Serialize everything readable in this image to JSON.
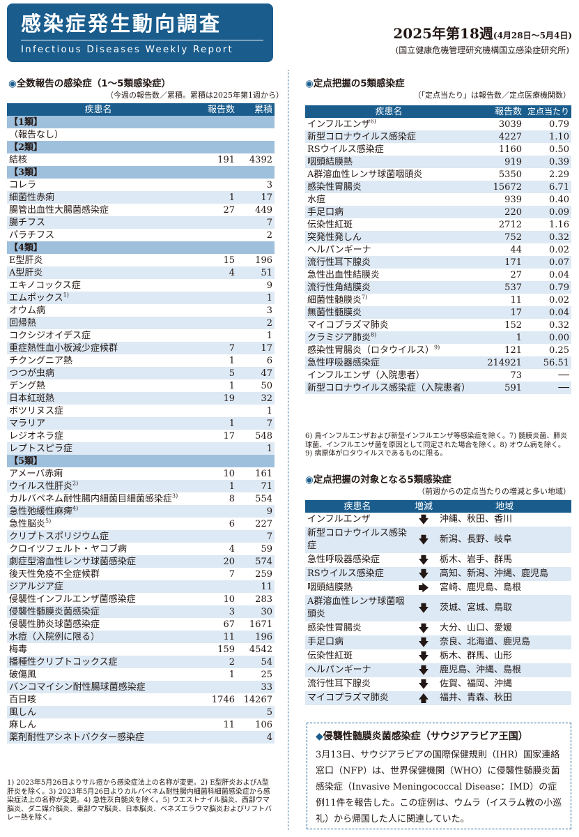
{
  "header": {
    "title_jp": "感染症発生動向調査",
    "title_en": "Infectious Diseases Weekly Report",
    "issue_main": "2025年第18週",
    "issue_dates": "(4月28日～5月4日)",
    "org": "(国立健康危機管理研究機構国立感染症研究所)",
    "brand_color": "#1a5d8d"
  },
  "left": {
    "title": "全数報告の感染症（1～5類感染症）",
    "note": "（今週の報告数／累積。累積は2025年第1週から）",
    "headers": [
      "疾患名",
      "報告数",
      "累積"
    ],
    "rows": [
      {
        "cat": "【1類】"
      },
      {
        "name": "（報告なし）",
        "count": "",
        "total": ""
      },
      {
        "cat": "【2類】"
      },
      {
        "name": "結核",
        "count": "191",
        "total": "4392"
      },
      {
        "cat": "【3類】"
      },
      {
        "name": "コレラ",
        "count": "",
        "total": "3"
      },
      {
        "name": "細菌性赤痢",
        "count": "1",
        "total": "17"
      },
      {
        "name": "腸管出血性大腸菌感染症",
        "count": "27",
        "total": "449"
      },
      {
        "name": "腸チフス",
        "count": "",
        "total": "7"
      },
      {
        "name": "パラチフス",
        "count": "",
        "total": "2"
      },
      {
        "cat": "【4類】"
      },
      {
        "name": "E型肝炎",
        "count": "15",
        "total": "196"
      },
      {
        "name": "A型肝炎",
        "count": "4",
        "total": "51"
      },
      {
        "name": "エキノコックス症",
        "count": "",
        "total": "9"
      },
      {
        "name": "エムポックス",
        "sup": "1)",
        "count": "",
        "total": "1"
      },
      {
        "name": "オウム病",
        "count": "",
        "total": "3"
      },
      {
        "name": "回帰熱",
        "count": "",
        "total": "2"
      },
      {
        "name": "コクシジオイデス症",
        "count": "",
        "total": "1"
      },
      {
        "name": "重症熱性血小板減少症候群",
        "count": "7",
        "total": "17"
      },
      {
        "name": "チクングニア熱",
        "count": "1",
        "total": "6"
      },
      {
        "name": "つつが虫病",
        "count": "5",
        "total": "47"
      },
      {
        "name": "デング熱",
        "count": "1",
        "total": "50"
      },
      {
        "name": "日本紅斑熱",
        "count": "19",
        "total": "32"
      },
      {
        "name": "ボツリヌス症",
        "count": "",
        "total": "1"
      },
      {
        "name": "マラリア",
        "count": "1",
        "total": "7"
      },
      {
        "name": "レジオネラ症",
        "count": "17",
        "total": "548"
      },
      {
        "name": "レプトスピラ症",
        "count": "",
        "total": "1"
      },
      {
        "cat": "【5類】"
      },
      {
        "name": "アメーバ赤痢",
        "count": "10",
        "total": "161"
      },
      {
        "name": "ウイルス性肝炎",
        "sup": "2)",
        "count": "1",
        "total": "71"
      },
      {
        "name": "カルバペネム耐性腸内細菌目細菌感染症",
        "sup": "3)",
        "count": "8",
        "total": "554"
      },
      {
        "name": "急性弛緩性麻痺",
        "sup": "4)",
        "count": "",
        "total": "9"
      },
      {
        "name": "急性脳炎",
        "sup": "5)",
        "count": "6",
        "total": "227"
      },
      {
        "name": "クリプトスポリジウム症",
        "count": "",
        "total": "7"
      },
      {
        "name": "クロイツフェルト・ヤコブ病",
        "count": "4",
        "total": "59"
      },
      {
        "name": "劇症型溶血性レンサ球菌感染症",
        "count": "20",
        "total": "574"
      },
      {
        "name": "後天性免疫不全症候群",
        "count": "7",
        "total": "259"
      },
      {
        "name": "ジアルジア症",
        "count": "",
        "total": "11"
      },
      {
        "name": "侵襲性インフルエンザ菌感染症",
        "count": "10",
        "total": "283"
      },
      {
        "name": "侵襲性髄膜炎菌感染症",
        "count": "3",
        "total": "30"
      },
      {
        "name": "侵襲性肺炎球菌感染症",
        "count": "67",
        "total": "1671"
      },
      {
        "name": "水痘（入院例に限る）",
        "count": "11",
        "total": "196"
      },
      {
        "name": "梅毒",
        "count": "159",
        "total": "4542"
      },
      {
        "name": "播種性クリプトコックス症",
        "count": "2",
        "total": "54"
      },
      {
        "name": "破傷風",
        "count": "1",
        "total": "25"
      },
      {
        "name": "バンコマイシン耐性腸球菌感染症",
        "count": "",
        "total": "33"
      },
      {
        "name": "百日咳",
        "count": "1746",
        "total": "14267"
      },
      {
        "name": "風しん",
        "count": "",
        "total": "5"
      },
      {
        "name": "麻しん",
        "count": "11",
        "total": "106"
      },
      {
        "name": "薬剤耐性アシネトバクター感染症",
        "count": "",
        "total": "4"
      }
    ],
    "footnote": "1) 2023年5月26日よりサル痘から感染症法上の名称が変更。2) E型肝炎およびA型肝炎を除く。3) 2023年5月26日よりカルバペネム耐性腸内細菌科細菌感染症から感染症法上の名称が変更。4) 急性灰白髄炎を除く。5) ウエストナイル脳炎、西部ウマ脳炎、ダニ媒介脳炎、東部ウマ脳炎、日本脳炎、ベネズエラウマ脳炎およびリフトバレー熱を除く。"
  },
  "sentinel": {
    "title": "定点把握の5類感染症",
    "note": "（「定点当たり」は報告数／定点医療機関数）",
    "headers": [
      "疾患名",
      "報告数",
      "定点当たり"
    ],
    "rows": [
      {
        "name": "インフルエンザ",
        "sup": "6)",
        "count": "3039",
        "per": "0.79"
      },
      {
        "name": "新型コロナウイルス感染症",
        "count": "4227",
        "per": "1.10"
      },
      {
        "name": "RSウイルス感染症",
        "count": "1160",
        "per": "0.50"
      },
      {
        "name": "咽頭結膜熱",
        "count": "919",
        "per": "0.39"
      },
      {
        "name": "A群溶血性レンサ球菌咽頭炎",
        "count": "5350",
        "per": "2.29"
      },
      {
        "name": "感染性胃腸炎",
        "count": "15672",
        "per": "6.71"
      },
      {
        "name": "水痘",
        "count": "939",
        "per": "0.40"
      },
      {
        "name": "手足口病",
        "count": "220",
        "per": "0.09"
      },
      {
        "name": "伝染性紅斑",
        "count": "2712",
        "per": "1.16"
      },
      {
        "name": "突発性発しん",
        "count": "752",
        "per": "0.32"
      },
      {
        "name": "ヘルパンギーナ",
        "count": "44",
        "per": "0.02"
      },
      {
        "name": "流行性耳下腺炎",
        "count": "171",
        "per": "0.07"
      },
      {
        "name": "急性出血性結膜炎",
        "count": "27",
        "per": "0.04"
      },
      {
        "name": "流行性角結膜炎",
        "count": "537",
        "per": "0.79"
      },
      {
        "name": "細菌性髄膜炎",
        "sup": "7)",
        "count": "11",
        "per": "0.02"
      },
      {
        "name": "無菌性髄膜炎",
        "count": "17",
        "per": "0.04"
      },
      {
        "name": "マイコプラズマ肺炎",
        "count": "152",
        "per": "0.32"
      },
      {
        "name": "クラミジア肺炎",
        "sup": "8)",
        "count": "1",
        "per": "0.00"
      },
      {
        "name": "感染性胃腸炎（ロタウイルス）",
        "sup": "9)",
        "count": "121",
        "per": "0.25"
      },
      {
        "name": "急性呼吸器感染症",
        "count": "214921",
        "per": "56.51"
      },
      {
        "name": "インフルエンザ（入院患者）",
        "count": "73",
        "per": "──"
      },
      {
        "name": "新型コロナウイルス感染症（入院患者）",
        "count": "591",
        "per": "──"
      }
    ],
    "footnote": "6) 鳥インフルエンザおよび新型インフルエンザ等感染症を除く。7) 髄膜炎菌、肺炎球菌、インフルエンザ菌を原因として同定された場合を除く。8) オウム病を除く。9) 病原体がロタウイルスであるものに限る。"
  },
  "trend": {
    "title": "定点把握の対象となる5類感染症",
    "note": "（前週からの定点当たりの増減と多い地域）",
    "headers": [
      "疾患名",
      "増減",
      "地域"
    ],
    "arrow_icons": {
      "down": "down-arrow-icon",
      "up": "up-arrow-icon",
      "right": "right-arrow-icon"
    },
    "rows": [
      {
        "name": "インフルエンザ",
        "dir": "down",
        "arrow": "🡇",
        "region": "沖縄、秋田、香川"
      },
      {
        "name": "新型コロナウイルス感染症",
        "dir": "down",
        "arrow": "🡇",
        "region": "新潟、長野、岐阜"
      },
      {
        "name": "急性呼吸器感染症",
        "dir": "down",
        "arrow": "🡇",
        "region": "栃木、岩手、群馬"
      },
      {
        "name": "RSウイルス感染症",
        "dir": "down",
        "arrow": "🡇",
        "region": "高知、新潟、沖縄、鹿児島"
      },
      {
        "name": "咽頭結膜熱",
        "dir": "right",
        "arrow": "🡆",
        "region": "宮崎、鹿児島、島根"
      },
      {
        "name": "A群溶血性レンサ球菌咽頭炎",
        "dir": "down",
        "arrow": "🡇",
        "region": "茨城、宮城、鳥取"
      },
      {
        "name": "感染性胃腸炎",
        "dir": "down",
        "arrow": "🡇",
        "region": "大分、山口、愛媛"
      },
      {
        "name": "手足口病",
        "dir": "down",
        "arrow": "🡇",
        "region": "奈良、北海道、鹿児島"
      },
      {
        "name": "伝染性紅斑",
        "dir": "down",
        "arrow": "🡇",
        "region": "栃木、群馬、山形"
      },
      {
        "name": "ヘルパンギーナ",
        "dir": "down",
        "arrow": "🡇",
        "region": "鹿児島、沖縄、島根"
      },
      {
        "name": "流行性耳下腺炎",
        "dir": "down",
        "arrow": "🡇",
        "region": "佐賀、福岡、沖縄"
      },
      {
        "name": "マイコプラズマ肺炎",
        "dir": "up",
        "arrow": "🡅",
        "region": "福井、青森、秋田"
      }
    ]
  },
  "news": {
    "title": "侵襲性髄膜炎菌感染症（サウジアラビア王国）",
    "body": "3月13日、サウジアラビアの国際保健規則（IHR）国家連絡窓口（NFP）は、世界保健機関（WHO）に侵襲性髄膜炎菌感染症（Invasive Meningococcal Disease：IMD）の症例11件を報告した。この症例は、ウムラ（イスラム教の小巡礼）から帰国した人に関連していた。"
  }
}
